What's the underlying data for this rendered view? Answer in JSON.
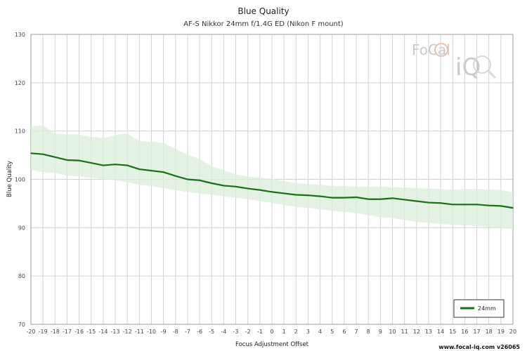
{
  "chart_data": {
    "type": "line",
    "title": "Blue Quality",
    "subtitle": "AF-S Nikkor 24mm f/1.4G ED (Nikon F mount)",
    "xlabel": "Focus Adjustment Offset",
    "ylabel": "Blue Quality",
    "xlim": [
      -20,
      20
    ],
    "ylim": [
      70,
      130
    ],
    "x_ticks": [
      -20,
      -19,
      -18,
      -17,
      -16,
      -15,
      -14,
      -13,
      -12,
      -11,
      -10,
      -9,
      -8,
      -7,
      -6,
      -5,
      -4,
      -3,
      -2,
      -1,
      0,
      1,
      2,
      3,
      4,
      5,
      6,
      7,
      8,
      9,
      10,
      11,
      12,
      13,
      14,
      15,
      16,
      17,
      18,
      19,
      20
    ],
    "y_ticks": [
      70,
      80,
      90,
      100,
      110,
      120,
      130
    ],
    "grid": true,
    "legend_position": "bottom-right",
    "series": [
      {
        "name": "24mm",
        "color": "#1a6e1a",
        "band_color": "#d9eed9",
        "x": [
          -20,
          -19,
          -18,
          -17,
          -16,
          -15,
          -14,
          -13,
          -12,
          -11,
          -10,
          -9,
          -8,
          -7,
          -6,
          -5,
          -4,
          -3,
          -2,
          -1,
          0,
          1,
          2,
          3,
          4,
          5,
          6,
          7,
          8,
          9,
          10,
          11,
          12,
          13,
          14,
          15,
          16,
          17,
          18,
          19,
          20
        ],
        "values": [
          105.4,
          105.2,
          104.6,
          104.0,
          103.9,
          103.4,
          102.9,
          103.1,
          102.9,
          102.1,
          101.8,
          101.5,
          100.7,
          100.0,
          99.8,
          99.2,
          98.7,
          98.5,
          98.1,
          97.8,
          97.4,
          97.1,
          96.8,
          96.7,
          96.5,
          96.2,
          96.2,
          96.3,
          95.9,
          95.9,
          96.1,
          95.8,
          95.5,
          95.2,
          95.1,
          94.8,
          94.8,
          94.8,
          94.6,
          94.5,
          94.1
        ],
        "upper": [
          111.0,
          111.2,
          109.5,
          109.3,
          109.3,
          108.8,
          108.5,
          109.2,
          109.5,
          107.9,
          107.8,
          107.5,
          106.3,
          105.1,
          104.2,
          102.7,
          101.9,
          101.0,
          100.6,
          100.3,
          100.1,
          99.7,
          99.2,
          99.0,
          98.9,
          98.6,
          98.6,
          98.5,
          98.5,
          98.5,
          98.4,
          98.3,
          98.2,
          98.1,
          98.0,
          97.9,
          98.0,
          98.0,
          97.9,
          97.8,
          97.3
        ],
        "lower": [
          101.9,
          101.5,
          101.3,
          100.8,
          100.6,
          100.4,
          100.0,
          99.8,
          99.4,
          98.9,
          98.6,
          98.2,
          97.8,
          97.4,
          97.1,
          96.8,
          96.5,
          96.2,
          95.9,
          95.5,
          95.1,
          94.7,
          94.3,
          94.1,
          93.8,
          93.5,
          93.3,
          93.0,
          92.6,
          92.2,
          92.0,
          91.6,
          91.2,
          91.0,
          90.8,
          90.6,
          90.5,
          90.3,
          90.1,
          90.0,
          89.7
        ]
      }
    ]
  },
  "watermark": {
    "brand_line1": "FoCal",
    "brand_line2": "iQ"
  },
  "footer": {
    "credit": "www.focal-iq.com  v26065"
  }
}
